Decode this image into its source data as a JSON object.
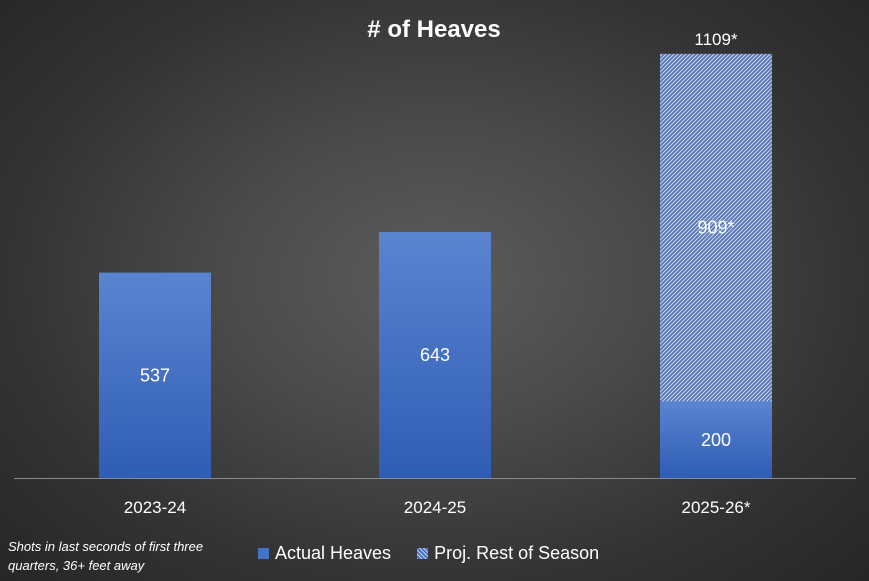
{
  "chart_data": {
    "type": "bar",
    "stacked": true,
    "title": "# of Heaves",
    "categories": [
      "2023-24",
      "2024-25",
      "2025-26*"
    ],
    "series": [
      {
        "name": "Actual Heaves",
        "values": [
          537,
          643,
          200
        ],
        "labels": [
          "537",
          "643",
          "200"
        ],
        "color": "#4472c4",
        "pattern": "solid"
      },
      {
        "name": "Proj. Rest of Season",
        "values": [
          0,
          0,
          909
        ],
        "labels": [
          "",
          "",
          "909*"
        ],
        "color": "#4472c4",
        "pattern": "hatched"
      }
    ],
    "totals": [
      "",
      "",
      "1109*"
    ],
    "ylim": [
      0,
      1140
    ],
    "grid": false,
    "legend_position": "bottom"
  },
  "footnote": "Shots in last seconds of first three quarters, 36+ feet away"
}
